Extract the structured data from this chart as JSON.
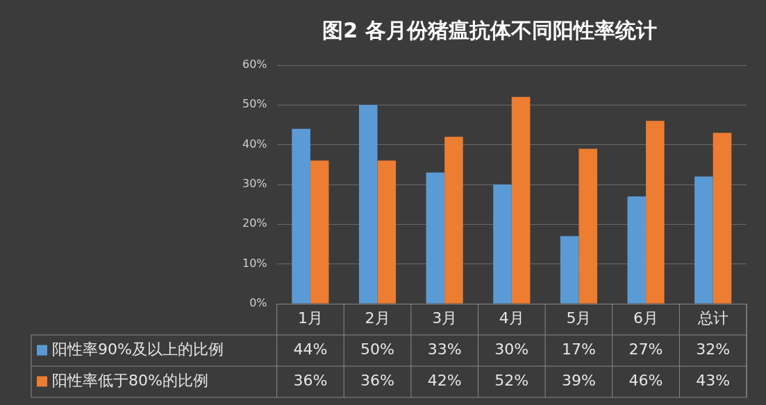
{
  "chart_data": {
    "type": "bar",
    "title": "图2 各月份猪瘟抗体不同阳性率统计",
    "categories": [
      "1月",
      "2月",
      "3月",
      "4月",
      "5月",
      "6月",
      "总计"
    ],
    "series": [
      {
        "name": "阳性率90%及以上的比例",
        "color": "#5b9bd5",
        "values": [
          44,
          50,
          33,
          30,
          17,
          27,
          32
        ],
        "value_labels": [
          "44%",
          "50%",
          "33%",
          "30%",
          "17%",
          "27%",
          "32%"
        ]
      },
      {
        "name": "阳性率低于80%的比例",
        "color": "#ed7d31",
        "values": [
          36,
          36,
          42,
          52,
          39,
          46,
          43
        ],
        "value_labels": [
          "36%",
          "36%",
          "42%",
          "52%",
          "39%",
          "46%",
          "43%"
        ]
      }
    ],
    "ylim": [
      0,
      60
    ],
    "yticks": [
      {
        "value": 0,
        "label": "0%"
      },
      {
        "value": 10,
        "label": "10%"
      },
      {
        "value": 20,
        "label": "20%"
      },
      {
        "value": 30,
        "label": "30%"
      },
      {
        "value": 40,
        "label": "40%"
      },
      {
        "value": 50,
        "label": "50%"
      },
      {
        "value": 60,
        "label": "60%"
      }
    ],
    "grid": "y",
    "legend": "bottom"
  }
}
